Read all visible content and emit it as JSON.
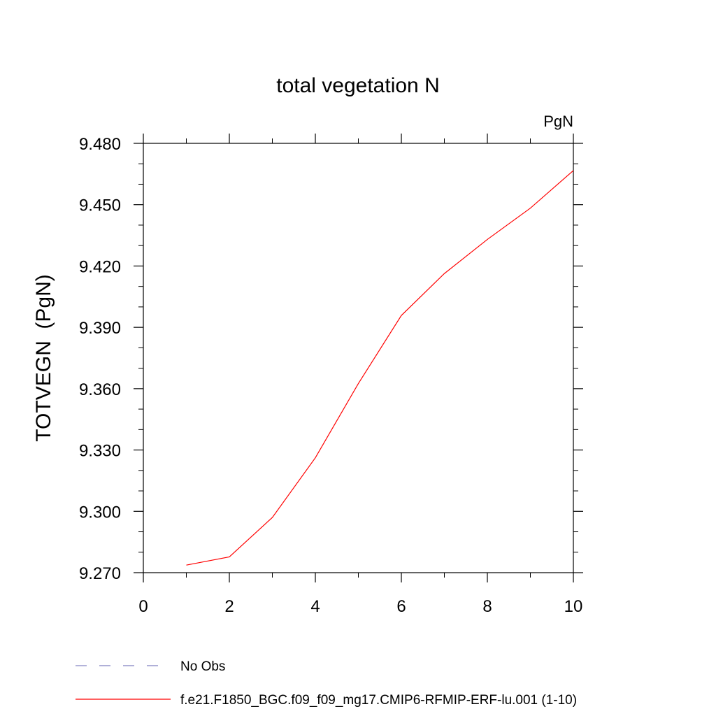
{
  "chart_data": {
    "type": "line",
    "title": "total vegetation N",
    "units_label": "PgN",
    "ylabel": "TOTVEGN  (PgN)",
    "xlabel": "",
    "xlim": [
      0,
      10
    ],
    "ylim": [
      9.27,
      9.48
    ],
    "x_ticks": [
      "0",
      "2",
      "4",
      "6",
      "8",
      "10"
    ],
    "y_ticks": [
      "9.270",
      "9.300",
      "9.330",
      "9.360",
      "9.390",
      "9.420",
      "9.450",
      "9.480"
    ],
    "x_tick_values": [
      0,
      2,
      4,
      6,
      8,
      10
    ],
    "y_tick_values": [
      9.27,
      9.3,
      9.33,
      9.36,
      9.39,
      9.42,
      9.45,
      9.48
    ],
    "x_minor_step": 1,
    "y_minor_step": 0.01,
    "grid": false,
    "series": [
      {
        "name": "f.e21.F1850_BGC.f09_f09_mg17.CMIP6-RFMIP-ERF-lu.001 (1-10)",
        "color": "#ff0000",
        "dash": "solid",
        "x": [
          1,
          2,
          3,
          4,
          5,
          6,
          7,
          8,
          9,
          10
        ],
        "y": [
          9.2737,
          9.2777,
          9.297,
          9.3262,
          9.3625,
          9.3958,
          9.4163,
          9.433,
          9.4483,
          9.4667
        ]
      }
    ],
    "legend": {
      "placement": "bottom",
      "entries": [
        {
          "label": "No Obs",
          "color": "#8080c0",
          "dash": "dashed"
        },
        {
          "label": "f.e21.F1850_BGC.f09_f09_mg17.CMIP6-RFMIP-ERF-lu.001 (1-10)",
          "color": "#ff0000",
          "dash": "solid"
        }
      ]
    }
  }
}
